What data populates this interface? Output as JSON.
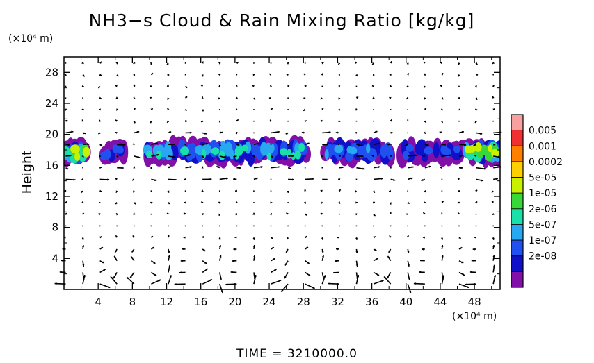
{
  "chart_data": {
    "type": "heatmap",
    "title": "NH3−s Cloud & Rain Mixing Ratio [kg/kg]",
    "ylabel": "Height",
    "x_unit_label": "(×10⁴ m)",
    "y_unit_label": "(×10⁴ m)",
    "footer": "TIME = 3210000.0",
    "xlim": [
      0,
      51
    ],
    "ylim": [
      0,
      30
    ],
    "x_ticks": [
      4,
      8,
      12,
      16,
      20,
      24,
      28,
      32,
      36,
      40,
      44,
      48
    ],
    "y_ticks": [
      4,
      8,
      12,
      16,
      20,
      24,
      28
    ],
    "colorbar": {
      "labels": [
        "0.005",
        "0.001",
        "0.0002",
        "5e-05",
        "1e-05",
        "2e-06",
        "5e-07",
        "1e-07",
        "2e-08"
      ],
      "colors": [
        "#f7a0a0",
        "#f03030",
        "#ff7f00",
        "#ffd000",
        "#c8f000",
        "#38d838",
        "#18e0a8",
        "#28a8f0",
        "#2050f0",
        "#1010c8",
        "#8010a8"
      ]
    },
    "cloud_layer": {
      "y_range": [
        16.2,
        19.3
      ],
      "segments": [
        {
          "x": [
            0,
            2.8
          ],
          "peak": "5e-05"
        },
        {
          "x": [
            4.5,
            7.2
          ],
          "peak": "1e-07"
        },
        {
          "x": [
            9.5,
            28.5
          ],
          "peak": "2e-06"
        },
        {
          "x": [
            30.5,
            38.5
          ],
          "peak": "5e-07"
        },
        {
          "x": [
            39.5,
            47
          ],
          "peak": "1e-07"
        },
        {
          "x": [
            47,
            51
          ],
          "peak": "5e-05"
        }
      ]
    },
    "vector_field": {
      "circulation_cells_x": [
        2,
        9,
        22,
        34,
        44,
        50
      ],
      "circulation_top": 8
    }
  }
}
